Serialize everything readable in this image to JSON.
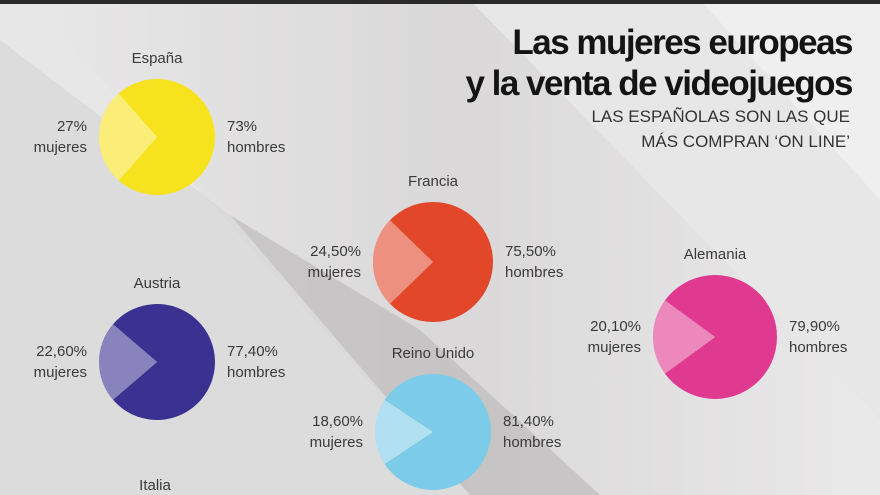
{
  "title_line1": "Las mujeres europeas",
  "title_line2": "y la venta de videojuegos",
  "subtitle_line1": "LAS ESPAÑOLAS SON LAS QUE",
  "subtitle_line2": "MÁS COMPRAN ‘ON LINE’",
  "chart_data": {
    "type": "pie",
    "title": "Las mujeres europeas y la venta de videojuegos",
    "subtitle": "LAS ESPAÑOLAS SON LAS QUE MÁS COMPRAN ‘ON LINE’",
    "categories": [
      "mujeres",
      "hombres"
    ],
    "pies": [
      {
        "country": "España",
        "women": 27,
        "men": 73,
        "women_label": "27%",
        "men_label": "73%",
        "color": "#f7e21e"
      },
      {
        "country": "Francia",
        "women": 24.5,
        "men": 75.5,
        "women_label": "24,50%",
        "men_label": "75,50%",
        "color": "#e3472a"
      },
      {
        "country": "Austria",
        "women": 22.6,
        "men": 77.4,
        "women_label": "22,60%",
        "men_label": "77,40%",
        "color": "#3a3190"
      },
      {
        "country": "Alemania",
        "women": 20.1,
        "men": 79.9,
        "women_label": "20,10%",
        "men_label": "79,90%",
        "color": "#e03a90"
      },
      {
        "country": "Reino Unido",
        "women": 18.6,
        "men": 81.4,
        "women_label": "18,60%",
        "men_label": "81,40%",
        "color": "#7ccbe8"
      },
      {
        "country": "Italia"
      }
    ],
    "women_word": "mujeres",
    "men_word": "hombres"
  }
}
